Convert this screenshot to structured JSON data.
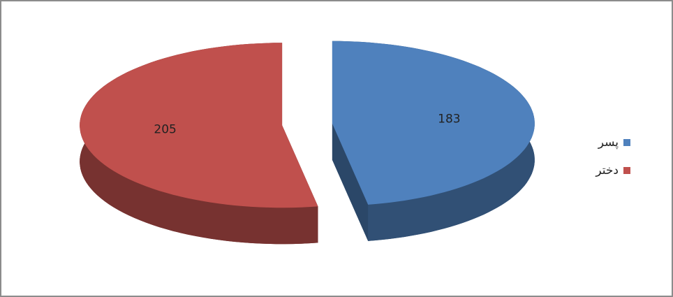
{
  "chart_data": {
    "type": "pie",
    "categories": [
      "پسر",
      "دختر"
    ],
    "values": [
      183,
      205
    ],
    "colors": [
      "#4f81bd",
      "#c0504d"
    ],
    "legend": "right"
  }
}
